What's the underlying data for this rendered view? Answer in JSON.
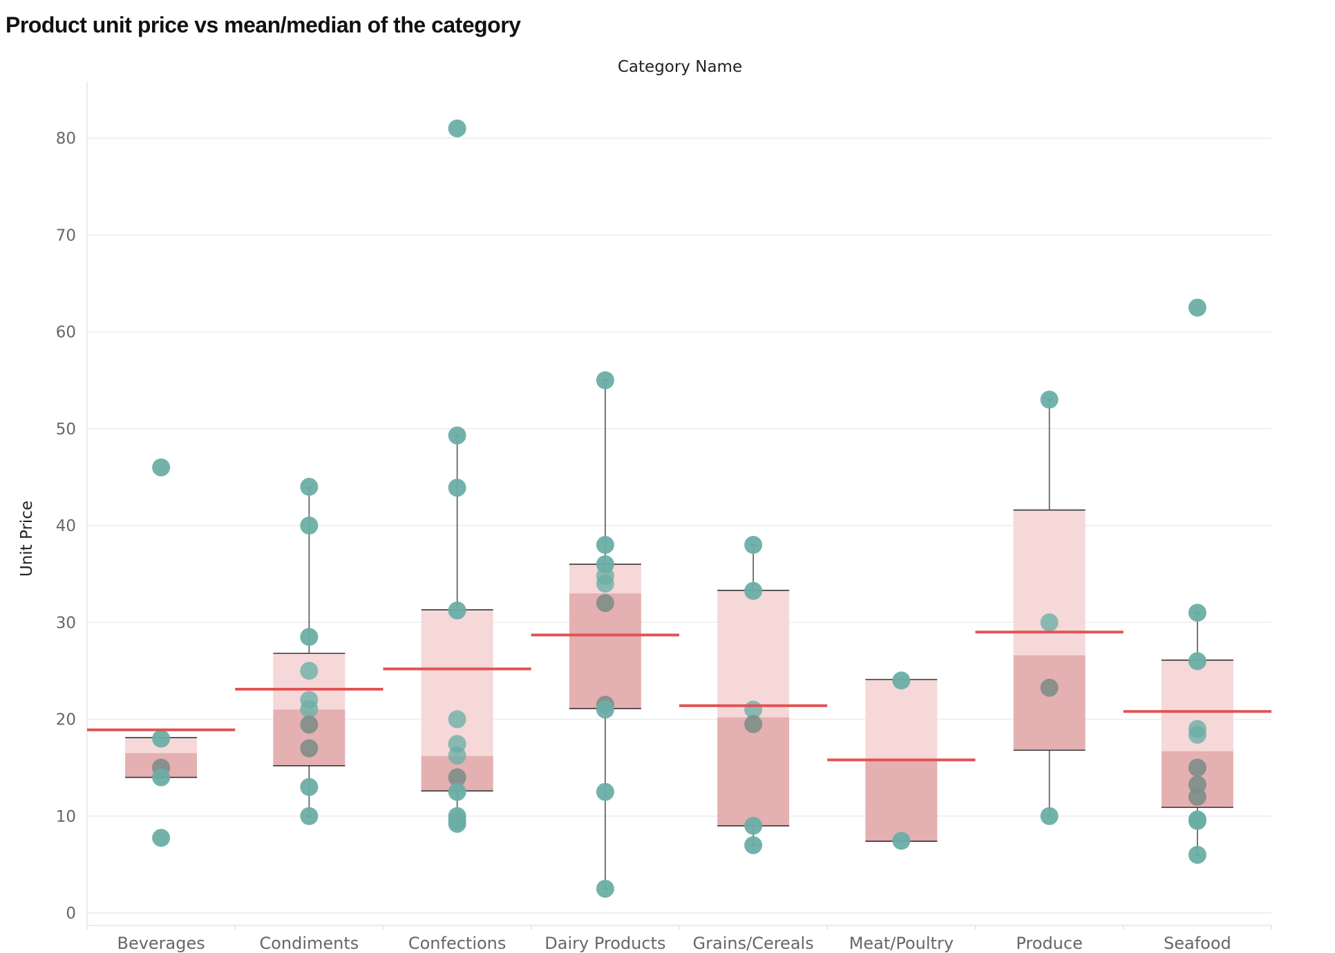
{
  "page": {
    "title": "Product unit price vs mean/median of the category"
  },
  "colors": {
    "point": "#6aaea6",
    "point_dark": "#8a7d79",
    "box_upper": "#f6d8d9",
    "box_lower": "#e4b0b1",
    "mean_line": "#e05355",
    "whisker": "#555555",
    "grid": "#ececec"
  },
  "chart_data": {
    "type": "box plot",
    "title": "Product unit price vs mean/median of the category",
    "column_header": "Category Name",
    "ylabel": "Unit Price",
    "ylim": [
      -1.5,
      86
    ],
    "yticks": [
      0,
      10,
      20,
      30,
      40,
      50,
      60,
      70,
      80
    ],
    "grid": true,
    "categories": [
      "Beverages",
      "Condiments",
      "Confections",
      "Dairy Products",
      "Grains/Cereals",
      "Meat/Poultry",
      "Produce",
      "Seafood"
    ],
    "mean": [
      18.9,
      23.1,
      25.2,
      28.7,
      21.4,
      15.8,
      29.0,
      20.8
    ],
    "boxes": [
      {
        "q1": 14.0,
        "median": 16.5,
        "q3": 18.1,
        "whisker_low": 14.0,
        "whisker_high": 18.1
      },
      {
        "q1": 15.2,
        "median": 21.0,
        "q3": 26.8,
        "whisker_low": 10.0,
        "whisker_high": 43.9
      },
      {
        "q1": 12.6,
        "median": 16.2,
        "q3": 31.3,
        "whisker_low": 9.2,
        "whisker_high": 49.3
      },
      {
        "q1": 21.1,
        "median": 33.0,
        "q3": 36.0,
        "whisker_low": 2.5,
        "whisker_high": 55.0
      },
      {
        "q1": 9.0,
        "median": 20.2,
        "q3": 33.3,
        "whisker_low": 7.0,
        "whisker_high": 38.0
      },
      {
        "q1": 7.4,
        "median": 15.8,
        "q3": 24.1,
        "whisker_low": 7.4,
        "whisker_high": 24.1
      },
      {
        "q1": 16.8,
        "median": 26.6,
        "q3": 41.6,
        "whisker_low": 10.0,
        "whisker_high": 53.0
      },
      {
        "q1": 10.9,
        "median": 16.7,
        "q3": 26.1,
        "whisker_low": 6.0,
        "whisker_high": 31.0
      }
    ],
    "points": [
      [
        46.0,
        18.0,
        15.0,
        14.0,
        7.75
      ],
      [
        44.0,
        40.0,
        28.5,
        25.0,
        22.0,
        21.05,
        19.45,
        17.0,
        13.0,
        10.0
      ],
      [
        81.0,
        49.3,
        43.9,
        31.23,
        20.0,
        17.45,
        16.25,
        14.0,
        12.5,
        10.0,
        9.5,
        9.2
      ],
      [
        55.0,
        38.0,
        36.0,
        34.8,
        34.0,
        32.0,
        21.5,
        21.0,
        12.5,
        2.5
      ],
      [
        38.0,
        33.25,
        21.0,
        19.5,
        9.0,
        7.0
      ],
      [
        24.0,
        7.45
      ],
      [
        53.0,
        30.0,
        23.25,
        10.0
      ],
      [
        62.5,
        31.0,
        26.0,
        19.0,
        18.4,
        15.0,
        13.25,
        12.0,
        9.65,
        9.5,
        6.0
      ]
    ]
  }
}
